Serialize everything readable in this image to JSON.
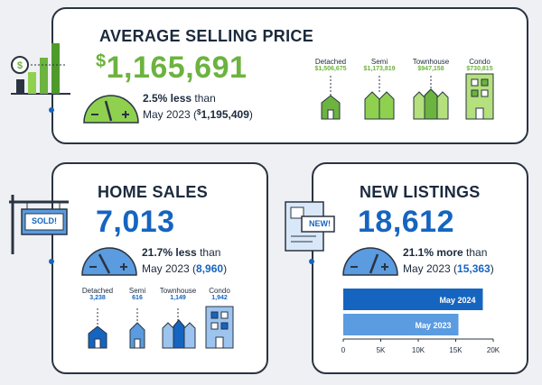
{
  "average_price": {
    "title": "AVERAGE SELLING PRICE",
    "currency": "$",
    "amount": "1,165,691",
    "change": "2.5% less",
    "change_word": "than",
    "comparison": "May 2023 (",
    "previous_currency": "$",
    "previous": "1,195,409",
    "close": ")",
    "types": [
      {
        "label": "Detached",
        "value": "$1,506,675"
      },
      {
        "label": "Semi",
        "value": "$1,173,819"
      },
      {
        "label": "Townhouse",
        "value": "$947,158"
      },
      {
        "label": "Condo",
        "value": "$730,815"
      }
    ]
  },
  "home_sales": {
    "sign": "SOLD!",
    "title": "HOME SALES",
    "amount": "7,013",
    "change": "21.7% less",
    "change_word": "than",
    "comparison": "May 2023 (",
    "previous": "8,960",
    "close": ")",
    "types": [
      {
        "label": "Detached",
        "value": "3,238"
      },
      {
        "label": "Semi",
        "value": "616"
      },
      {
        "label": "Townhouse",
        "value": "1,149"
      },
      {
        "label": "Condo",
        "value": "1,942"
      }
    ]
  },
  "new_listings": {
    "sign": "NEW!",
    "title": "NEW LISTINGS",
    "amount": "18,612",
    "change": "21.1% more",
    "change_word": "than",
    "comparison": "May 2023 (",
    "previous": "15,363",
    "close": ")",
    "chart_data": {
      "type": "hbar",
      "categories": [
        "May 2024",
        "May 2023"
      ],
      "values": [
        18612,
        15363
      ],
      "colors": [
        "#1565c0",
        "#5b9be0"
      ],
      "xlim": [
        0,
        20000
      ],
      "xticks": [
        0,
        {
          "value": 5000,
          "label": "5K"
        },
        {
          "value": 10000,
          "label": "10K"
        },
        {
          "value": 15000,
          "label": "15K"
        },
        {
          "value": 20000,
          "label": "20K"
        }
      ]
    }
  }
}
